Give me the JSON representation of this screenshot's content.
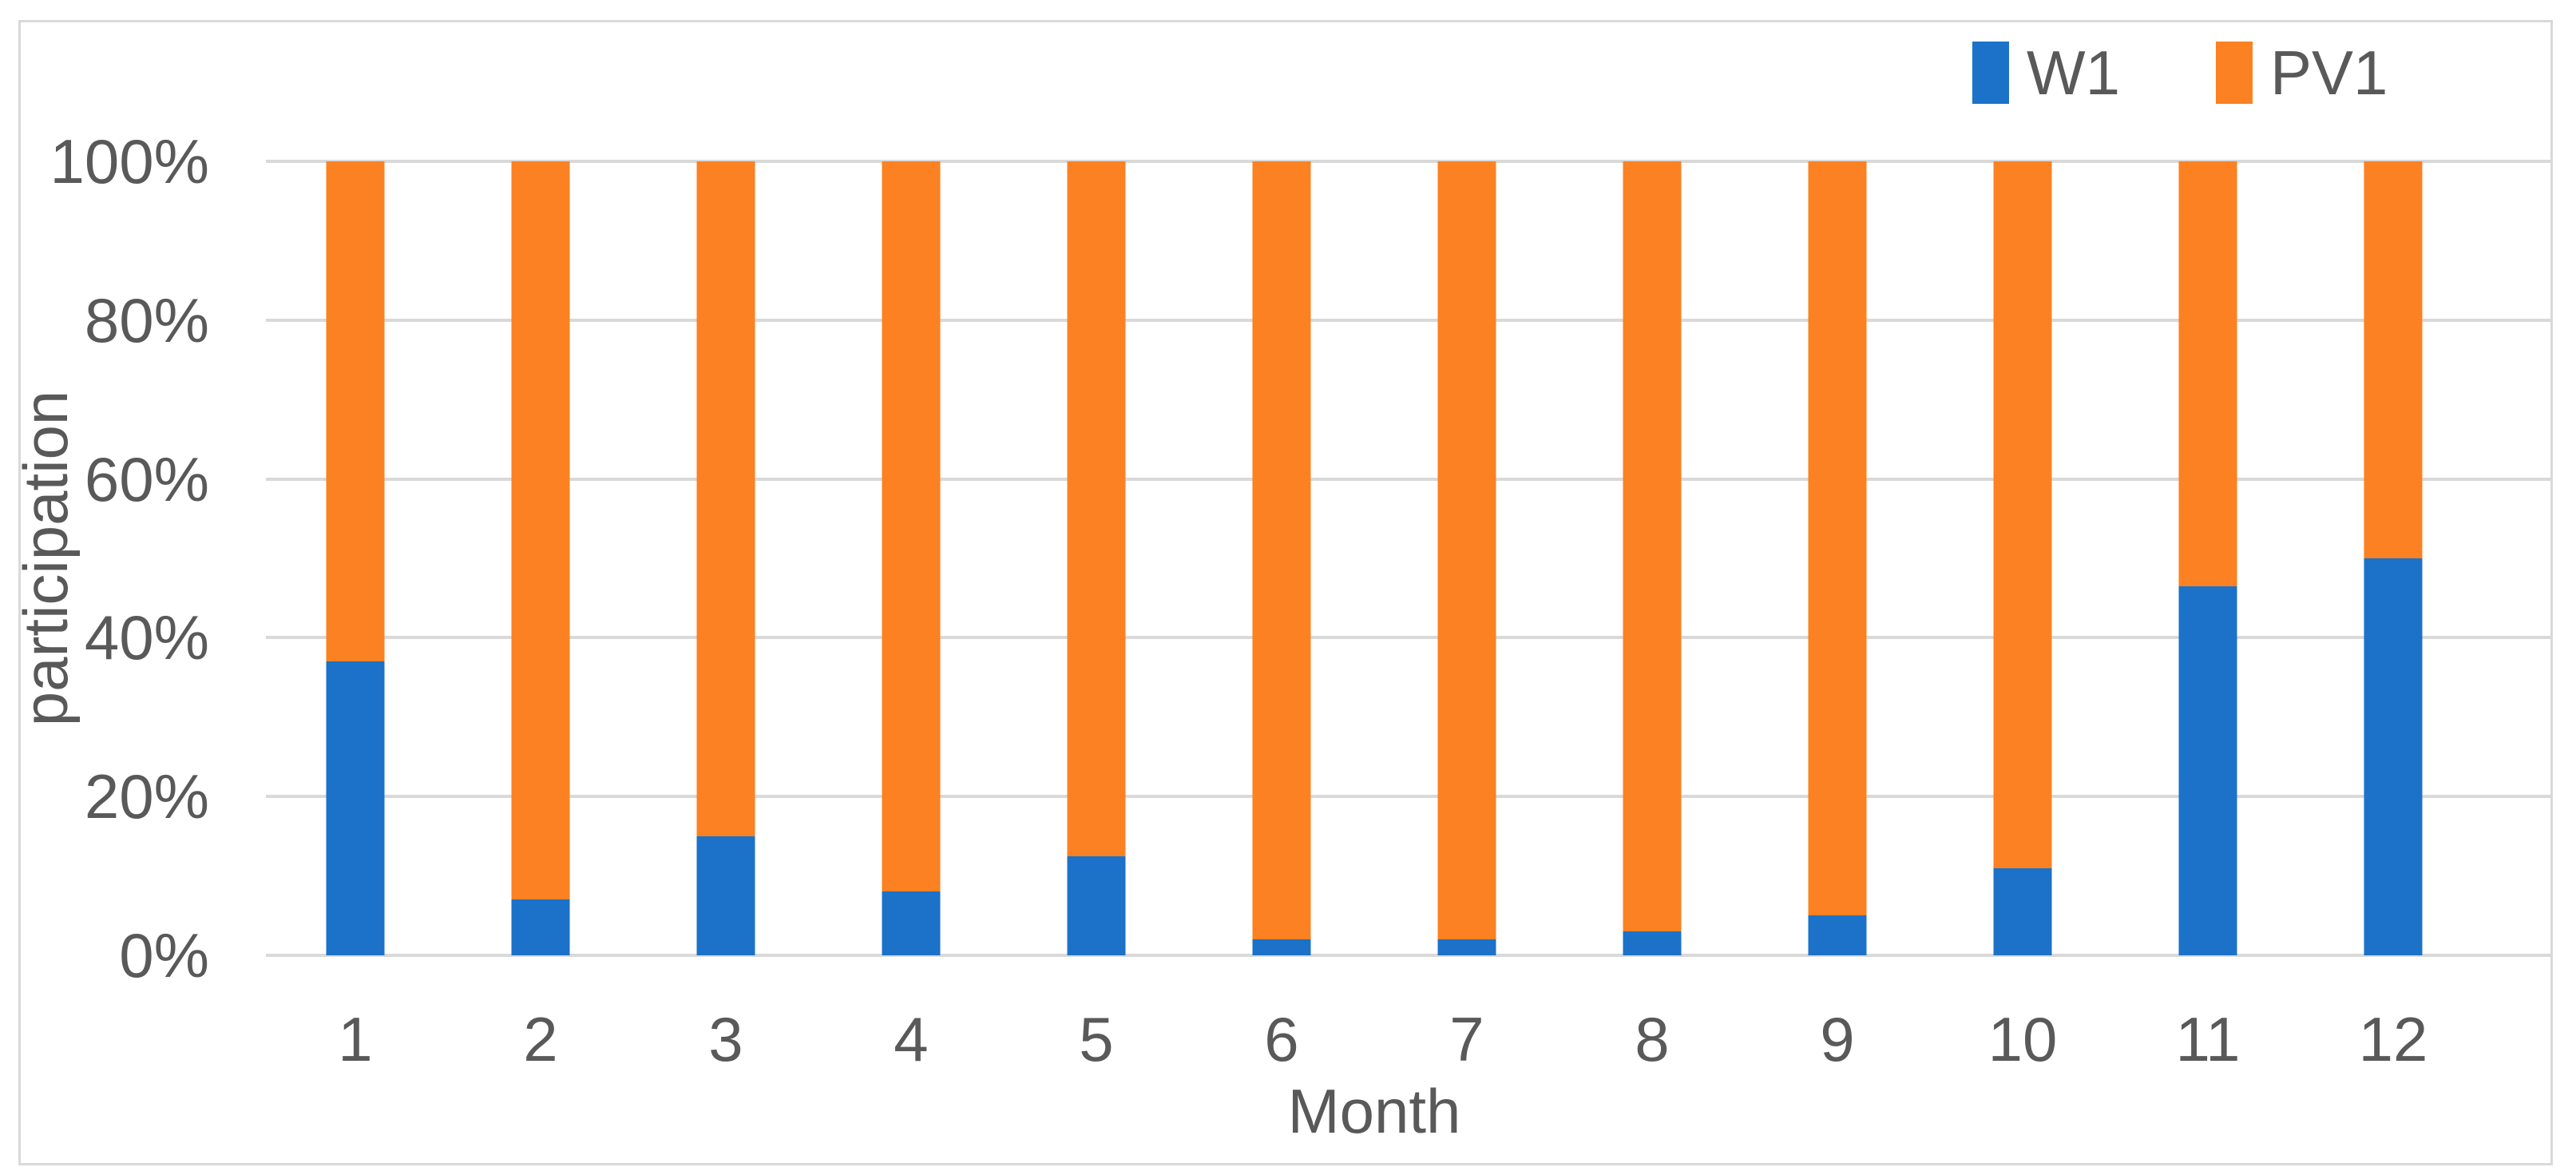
{
  "figure": {
    "background": "#FFFFFF",
    "border_color": "#D9D9D9"
  },
  "legend": {
    "items": [
      {
        "label": "W1",
        "color": "#1B72C8"
      },
      {
        "label": "PV1",
        "color": "#FB8122"
      }
    ]
  },
  "axes": {
    "y_title": "participation",
    "x_title": "Month",
    "y_tick_labels_top_to_bottom": [
      "100%",
      "80%",
      "60%",
      "40%",
      "20%",
      "0%"
    ],
    "x_tick_labels": [
      "1",
      "2",
      "3",
      "4",
      "5",
      "6",
      "7",
      "8",
      "9",
      "10",
      "11",
      "12"
    ],
    "text_color": "#595959",
    "gridline_color": "#D9D9D9"
  },
  "chart_data": {
    "type": "bar",
    "stacked": true,
    "title": "",
    "xlabel": "Month",
    "ylabel": "participation",
    "categories": [
      "1",
      "2",
      "3",
      "4",
      "5",
      "6",
      "7",
      "8",
      "9",
      "10",
      "11",
      "12"
    ],
    "series": [
      {
        "name": "W1",
        "color": "#1B72C8",
        "values": [
          37,
          7,
          15,
          8,
          12.5,
          2,
          2,
          3,
          5,
          11,
          46.5,
          50
        ]
      },
      {
        "name": "PV1",
        "color": "#FB8122",
        "values": [
          63,
          93,
          85,
          92,
          87.5,
          98,
          98,
          97,
          95,
          89,
          53.5,
          50
        ]
      }
    ],
    "values_unit": "percent",
    "ylim": [
      0,
      100
    ],
    "y_ticks_percent": [
      0,
      20,
      40,
      60,
      80,
      100
    ],
    "grid": true,
    "legend_position": "top-right"
  }
}
